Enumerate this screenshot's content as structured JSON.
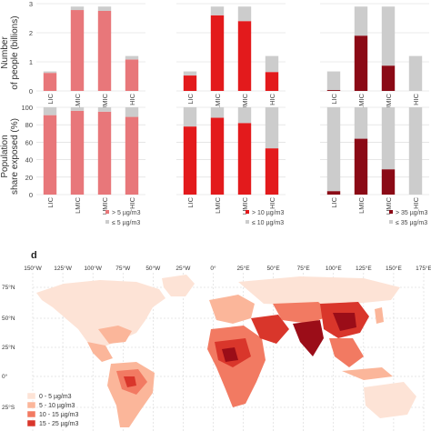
{
  "chart_data": [
    {
      "type": "bar",
      "stacked": true,
      "categories": [
        "LIC",
        "LMIC",
        "UMIC",
        "HIC"
      ],
      "ylabel": "Number\nof people (billions)",
      "ylim": [
        0,
        3
      ],
      "yticks": [
        "0",
        "1",
        "2",
        "3"
      ],
      "grid": true,
      "series": [
        {
          "values": [
            0.62,
            2.78,
            2.75,
            1.08
          ],
          "color": "#e8777a"
        },
        {
          "values": [
            0.05,
            0.12,
            0.15,
            0.12
          ],
          "color": "#cccccc"
        }
      ]
    },
    {
      "type": "bar",
      "stacked": true,
      "categories": [
        "LIC",
        "LMIC",
        "UMIC",
        "HIC"
      ],
      "ylim": [
        0,
        3
      ],
      "grid": true,
      "series": [
        {
          "values": [
            0.53,
            2.6,
            2.4,
            0.65
          ],
          "color": "#e31a1c"
        },
        {
          "values": [
            0.14,
            0.3,
            0.5,
            0.55
          ],
          "color": "#cccccc"
        }
      ]
    },
    {
      "type": "bar",
      "stacked": true,
      "categories": [
        "LIC",
        "LMIC",
        "UMIC",
        "HIC"
      ],
      "ylim": [
        0,
        3
      ],
      "grid": true,
      "series": [
        {
          "values": [
            0.03,
            1.9,
            0.87,
            0.0
          ],
          "color": "#8b0a16"
        },
        {
          "values": [
            0.64,
            1.0,
            2.03,
            1.2
          ],
          "color": "#cccccc"
        }
      ]
    },
    {
      "type": "bar",
      "stacked": true,
      "categories": [
        "LIC",
        "LMIC",
        "UMIC",
        "HIC"
      ],
      "ylabel": "Population\nshare exposed (%)",
      "ylim": [
        0,
        100
      ],
      "yticks": [
        "0",
        "20",
        "40",
        "60",
        "80",
        "100"
      ],
      "grid": true,
      "legend": {
        "position": "bottom-right",
        "entries": [
          "> 5 µg/m3",
          "≤ 5 µg/m3"
        ]
      },
      "series": [
        {
          "name": "> 5 µg/m3",
          "values": [
            91,
            96,
            95,
            89
          ],
          "color": "#e8777a"
        },
        {
          "name": "≤ 5 µg/m3",
          "values": [
            9,
            4,
            5,
            11
          ],
          "color": "#cccccc"
        }
      ]
    },
    {
      "type": "bar",
      "stacked": true,
      "categories": [
        "LIC",
        "LMIC",
        "UMIC",
        "HIC"
      ],
      "ylim": [
        0,
        100
      ],
      "grid": true,
      "legend": {
        "position": "bottom-right",
        "entries": [
          "> 10 µg/m3",
          "≤ 10 µg/m3"
        ]
      },
      "series": [
        {
          "name": "> 10 µg/m3",
          "values": [
            78,
            88,
            82,
            53
          ],
          "color": "#e31a1c"
        },
        {
          "name": "≤ 10 µg/m3",
          "values": [
            22,
            12,
            18,
            47
          ],
          "color": "#cccccc"
        }
      ]
    },
    {
      "type": "bar",
      "stacked": true,
      "categories": [
        "LIC",
        "LMIC",
        "UMIC",
        "HIC"
      ],
      "ylim": [
        0,
        100
      ],
      "grid": true,
      "legend": {
        "position": "bottom-right",
        "entries": [
          "> 35 µg/m3",
          "≤ 35 µg/m3"
        ]
      },
      "series": [
        {
          "name": "> 35 µg/m3",
          "values": [
            4,
            64,
            29,
            0
          ],
          "color": "#8b0a16"
        },
        {
          "name": "≤ 35 µg/m3",
          "values": [
            96,
            36,
            71,
            100
          ],
          "color": "#cccccc"
        }
      ]
    }
  ],
  "map": {
    "panel_label": "d",
    "lon_ticks": [
      "150°W",
      "125°W",
      "100°W",
      "75°W",
      "50°W",
      "25°W",
      "0°",
      "25°E",
      "50°E",
      "75°E",
      "100°E",
      "125°E",
      "150°E",
      "175°E"
    ],
    "lat_ticks": [
      "75°N",
      "50°N",
      "25°N",
      "0°",
      "25°S"
    ],
    "legend": [
      {
        "label": "0 - 5 µg/m3",
        "color": "#fde3d6"
      },
      {
        "label": "5 - 10 µg/m3",
        "color": "#fbb69a"
      },
      {
        "label": "10 - 15 µg/m3",
        "color": "#f27a62"
      },
      {
        "label": "15 - 25 µg/m3",
        "color": "#d9362b"
      }
    ],
    "region_colors": {
      "lightest": "#fde3d6",
      "light": "#fbb69a",
      "mid": "#f27a62",
      "high": "#d9362b",
      "darkest": "#9b0d18"
    }
  }
}
